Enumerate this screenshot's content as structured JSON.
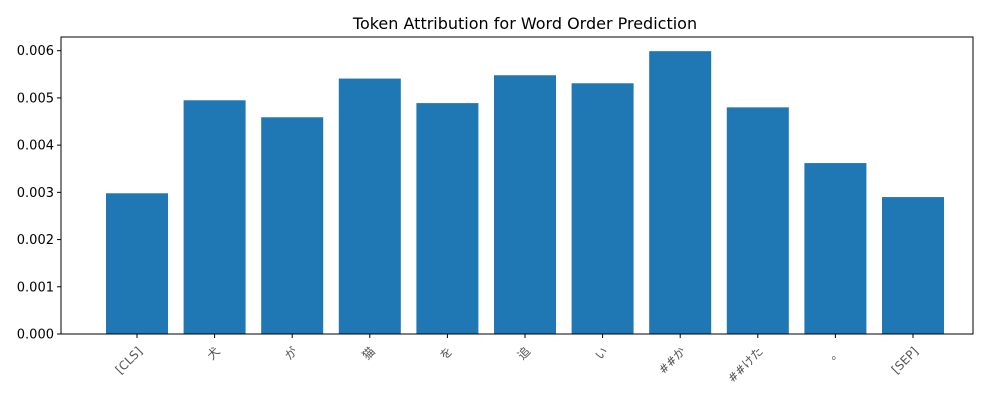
{
  "chart_data": {
    "type": "bar",
    "title": "Token Attribution for Word Order Prediction",
    "xlabel": "",
    "ylabel": "",
    "categories": [
      "[CLS]",
      "犬",
      "が",
      "猫",
      "を",
      "追",
      "い",
      "##か",
      "##けた",
      "。",
      "[SEP]"
    ],
    "values": [
      0.00298,
      0.00495,
      0.00459,
      0.00541,
      0.00489,
      0.00548,
      0.00531,
      0.00599,
      0.0048,
      0.00362,
      0.0029
    ],
    "ylim": [
      0,
      0.00629
    ],
    "yticks": [
      "0.000",
      "0.001",
      "0.002",
      "0.003",
      "0.004",
      "0.005",
      "0.006"
    ],
    "bar_color": "#1f77b4",
    "grid": false,
    "legend": "none"
  }
}
